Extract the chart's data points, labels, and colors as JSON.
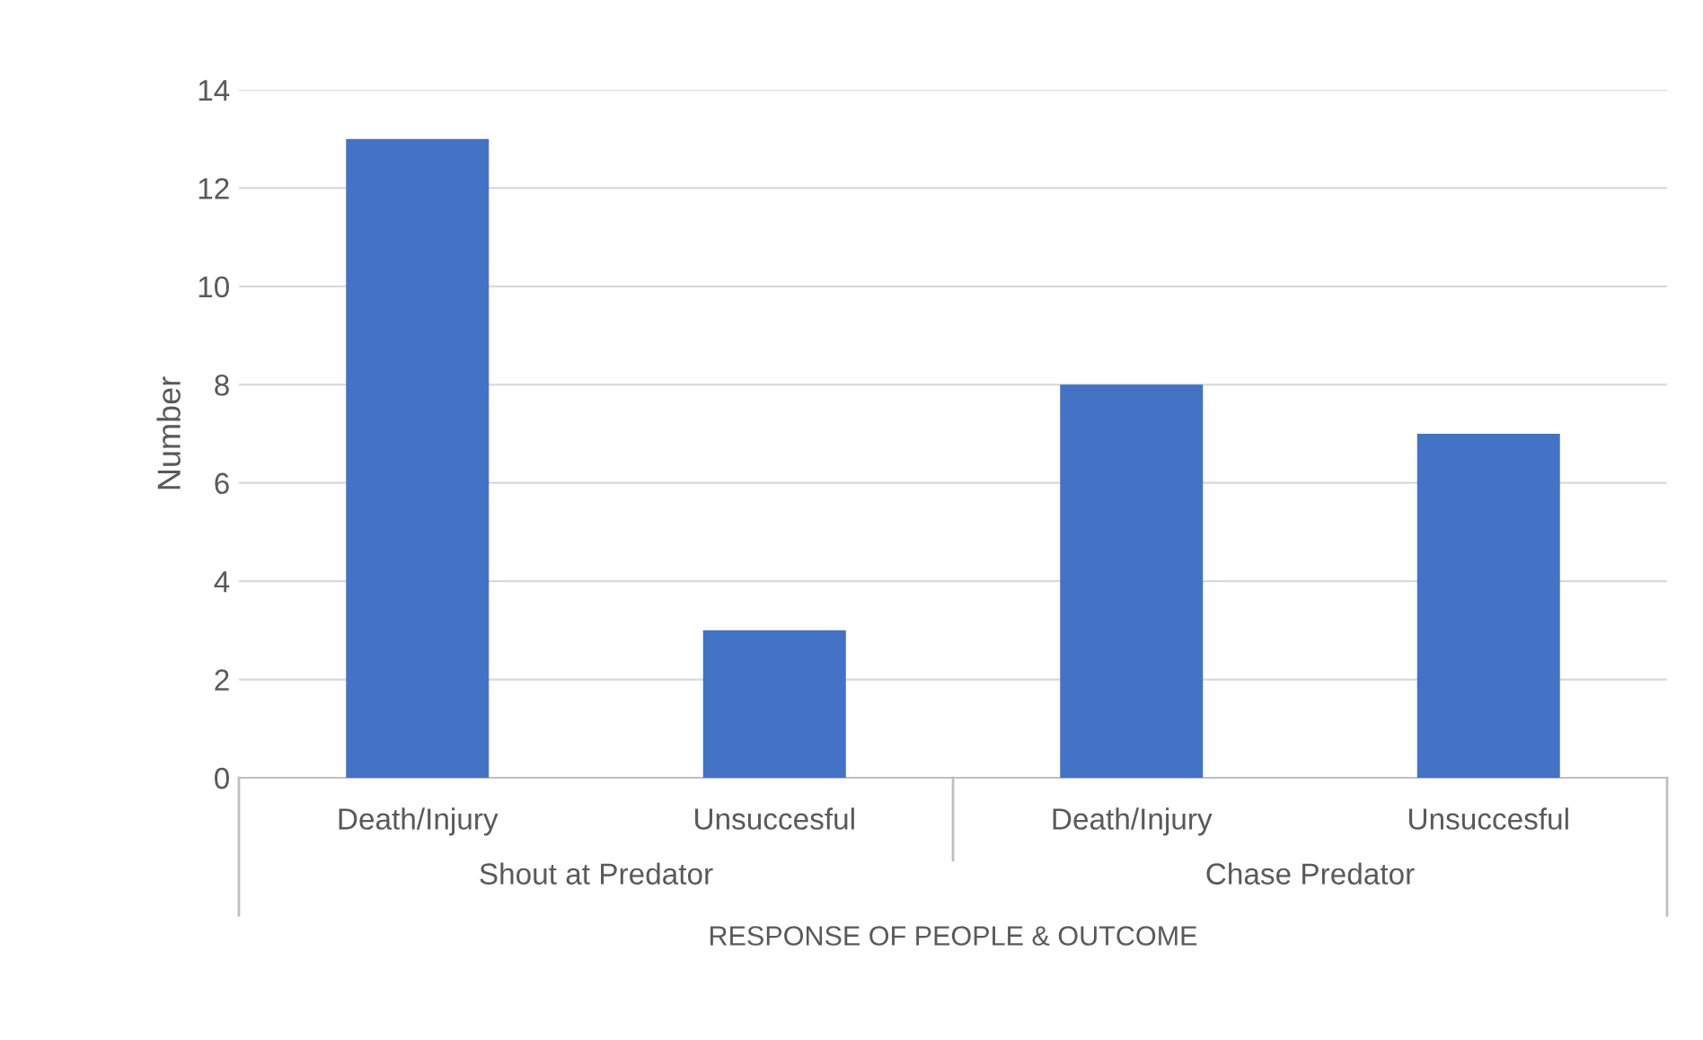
{
  "chart_data": {
    "type": "bar",
    "categories": [
      "Death/Injury",
      "Unsuccesful",
      "Death/Injury",
      "Unsuccesful"
    ],
    "values": [
      13,
      3,
      8,
      7
    ],
    "color": "#4472c4",
    "ylabel": "Number",
    "xlabel": "RESPONSE OF PEOPLE & OUTCOME",
    "annotations": [
      "Shout at Predator",
      "Chase Predator"
    ],
    "ylim": [
      0,
      14
    ],
    "yticks": [
      0,
      2,
      4,
      6,
      8,
      10,
      12,
      14
    ],
    "grid": "y",
    "legend": false
  }
}
